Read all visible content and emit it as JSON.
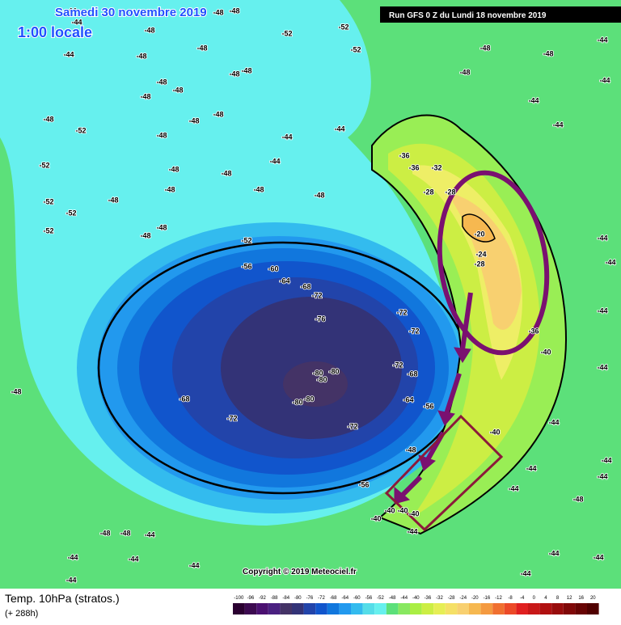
{
  "header": {
    "date": "Samedi 30 novembre 2019",
    "time": "1:00 locale",
    "run": "Run GFS 0 Z du Lundi 18 novembre 2019"
  },
  "copyright": "Copyright © 2019 Meteociel.fr",
  "footer": {
    "title": "Temp. 10hPa (stratos.)",
    "lead": "(+ 288h)"
  },
  "colorbar": {
    "ticks": [
      -100,
      -96,
      -92,
      -88,
      -84,
      -80,
      -76,
      -72,
      -68,
      -64,
      -60,
      -56,
      -52,
      -48,
      -44,
      -40,
      -36,
      -32,
      -28,
      -24,
      -20,
      -16,
      -12,
      -8,
      -4,
      0,
      4,
      8,
      12,
      16,
      20
    ],
    "colors": [
      "#2a0030",
      "#3c0a50",
      "#4a1070",
      "#4a2080",
      "#443366",
      "#333377",
      "#2244aa",
      "#1155cc",
      "#1177dd",
      "#2299ee",
      "#33bbee",
      "#55dde8",
      "#66f0ee",
      "#5ce07a",
      "#88e860",
      "#aaee44",
      "#ccee44",
      "#e6ee55",
      "#f5e066",
      "#f8d070",
      "#f6b850",
      "#f49a40",
      "#f07030",
      "#ec4a28",
      "#e02020",
      "#c81818",
      "#b01010",
      "#980c0c",
      "#800808",
      "#680404",
      "#500000"
    ]
  },
  "map": {
    "contour_labels": [
      "-44",
      "-44",
      "-48",
      "-48",
      "-48",
      "-48",
      "-52",
      "-52",
      "-52",
      "-44",
      "-48",
      "-48",
      "-48",
      "-48",
      "-48",
      "-48",
      "-48",
      "-52",
      "-48",
      "-48",
      "-48",
      "-52",
      "-48",
      "-48",
      "-48",
      "-48",
      "-48",
      "-52",
      "-48",
      "-52",
      "-52",
      "-48",
      "-48",
      "-52",
      "-56",
      "-60",
      "-64",
      "-68",
      "-72",
      "-76",
      "-72",
      "-72",
      "-72",
      "-68",
      "-64",
      "-56",
      "-80",
      "-80",
      "-80",
      "-80",
      "-80",
      "-68",
      "-72",
      "-72",
      "-48",
      "-56",
      "-40",
      "-40",
      "-40",
      "-40",
      "-44",
      "-44",
      "-44",
      "-44",
      "-36",
      "-36",
      "-32",
      "-28",
      "-28",
      "-20",
      "-24",
      "-28",
      "-36",
      "-40",
      "-40",
      "-44",
      "-44",
      "-44",
      "-48",
      "-44",
      "-44",
      "-44",
      "-44",
      "-44",
      "-44",
      "-44",
      "-44",
      "-48",
      "-48",
      "-48",
      "-44",
      "-44",
      "-48",
      "-48",
      "-48",
      "-44",
      "-44",
      "-44",
      "-44",
      "-44",
      "-44",
      "-44",
      "-44"
    ]
  }
}
